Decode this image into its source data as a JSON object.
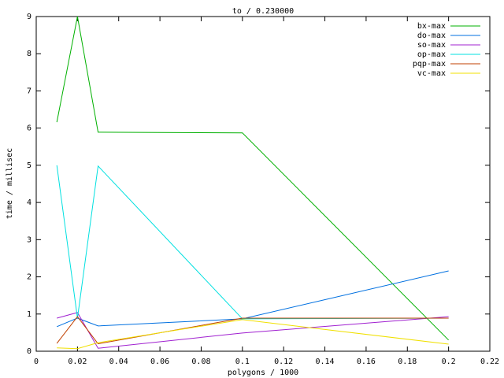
{
  "chart_data": {
    "type": "line",
    "title": "to / 0.230000",
    "xlabel": "polygons / 1000",
    "ylabel": "time / millisec",
    "x": [
      0.01,
      0.02,
      0.03,
      0.1,
      0.2
    ],
    "series": [
      {
        "name": "bx-max",
        "color": "#00b000",
        "values": [
          6.16,
          9.0,
          5.89,
          5.87,
          0.3
        ]
      },
      {
        "name": "do-max",
        "color": "#0070e0",
        "values": [
          0.66,
          0.89,
          0.68,
          0.87,
          2.16
        ]
      },
      {
        "name": "so-max",
        "color": "#a020d0",
        "values": [
          0.89,
          1.04,
          0.08,
          0.49,
          0.93
        ]
      },
      {
        "name": "op-max",
        "color": "#00e0e0",
        "values": [
          5.0,
          0.89,
          4.98,
          0.87,
          0.89
        ]
      },
      {
        "name": "pqp-max",
        "color": "#c04000",
        "values": [
          0.21,
          0.93,
          0.2,
          0.89,
          0.89
        ]
      },
      {
        "name": "vc-max",
        "color": "#f0e000",
        "values": [
          0.09,
          0.07,
          0.23,
          0.85,
          0.19
        ]
      }
    ],
    "xlim": [
      0,
      0.22
    ],
    "xticks": [
      0,
      0.02,
      0.04,
      0.06,
      0.08,
      0.1,
      0.12,
      0.14,
      0.16,
      0.18,
      0.2,
      0.22
    ],
    "ylim": [
      0,
      9
    ],
    "yticks": [
      0,
      1,
      2,
      3,
      4,
      5,
      6,
      7,
      8,
      9
    ],
    "legend": "top-right"
  }
}
